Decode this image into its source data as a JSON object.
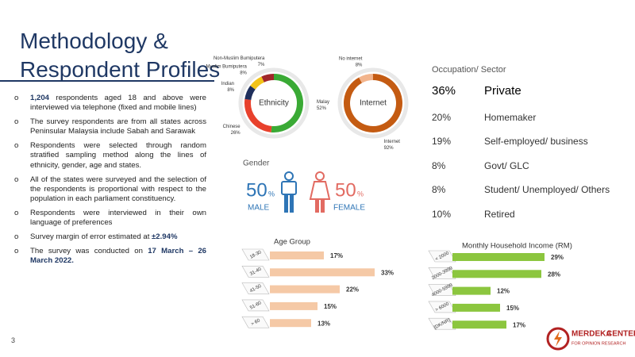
{
  "title_lines": [
    "Methodology &",
    "Respondent Profiles"
  ],
  "bullets": [
    [
      "1,204",
      " respondents aged 18 and above were interviewed via telephone (fixed and mobile lines)"
    ],
    [
      "The survey respondents are from all states across Peninsular Malaysia include Sabah and Sarawak"
    ],
    [
      "Respondents were selected through random stratified sampling method along the lines of ethnicity, gender, age and states."
    ],
    [
      "All of the states were surveyed and the selection of the respondents is proportional with respect to the population in each parliament constituency."
    ],
    [
      "Respondents were interviewed in their own language of preferences"
    ],
    [
      "Survey margin of error estimated at ",
      "±2.94%"
    ],
    [
      "The survey was conducted on ",
      "17 March – 26 March 2022."
    ]
  ],
  "occupation": {
    "title": "Occupation/ Sector",
    "rows": [
      [
        "36%",
        "Private"
      ],
      [
        "20%",
        "Homemaker"
      ],
      [
        "19%",
        "Self-employed/ business"
      ],
      [
        "8%",
        "Govt/ GLC"
      ],
      [
        "8%",
        "Student/ Unemployed/ Others"
      ],
      [
        "10%",
        "Retired"
      ]
    ]
  },
  "gender": {
    "title": "Gender",
    "male": {
      "value": "50",
      "unit": "%",
      "label": "MALE"
    },
    "female": {
      "value": "50",
      "unit": "%",
      "label": "FEMALE"
    }
  },
  "page_number": "3",
  "logo": {
    "name": "MERDEKA",
    "name2": "CENTER",
    "tagline": "FOR OPINION RESEARCH"
  },
  "chart_data": [
    {
      "type": "donut",
      "title": "Ethnicity",
      "categories": [
        "Malay",
        "Chinese",
        "Indian",
        "Muslim Bumiputera",
        "Non-Muslim Bumiputera"
      ],
      "values": [
        52,
        26,
        8,
        8,
        7
      ],
      "value_labels": [
        "52%",
        "26%",
        "8%",
        "8%",
        "7%"
      ],
      "colors": [
        "#3aaa35",
        "#e8412c",
        "#1f2f5c",
        "#f2c318",
        "#a0272a"
      ]
    },
    {
      "type": "donut",
      "title": "Internet",
      "categories": [
        "No internet",
        "Internet"
      ],
      "values": [
        8,
        92
      ],
      "value_labels": [
        "8%",
        "92%"
      ],
      "colors": [
        "#f2b48c",
        "#c45b12"
      ]
    },
    {
      "type": "hbar",
      "title": "Age Group",
      "categories": [
        "18-30",
        "31-40",
        "41-50",
        "51-60",
        "> 60"
      ],
      "values": [
        17,
        33,
        22,
        15,
        13
      ],
      "value_labels": [
        "17%",
        "33%",
        "22%",
        "15%",
        "13%"
      ],
      "color": "#f5c9a6"
    },
    {
      "type": "hbar",
      "title": "Monthly Household Income (RM)",
      "categories": [
        "< 2000",
        "2000-3999",
        "4000-5999",
        "> 6000",
        "[DK/NR]"
      ],
      "values": [
        29,
        28,
        12,
        15,
        17
      ],
      "value_labels": [
        "29%",
        "28%",
        "12%",
        "15%",
        "17%"
      ],
      "color": "#8cc63f"
    }
  ]
}
